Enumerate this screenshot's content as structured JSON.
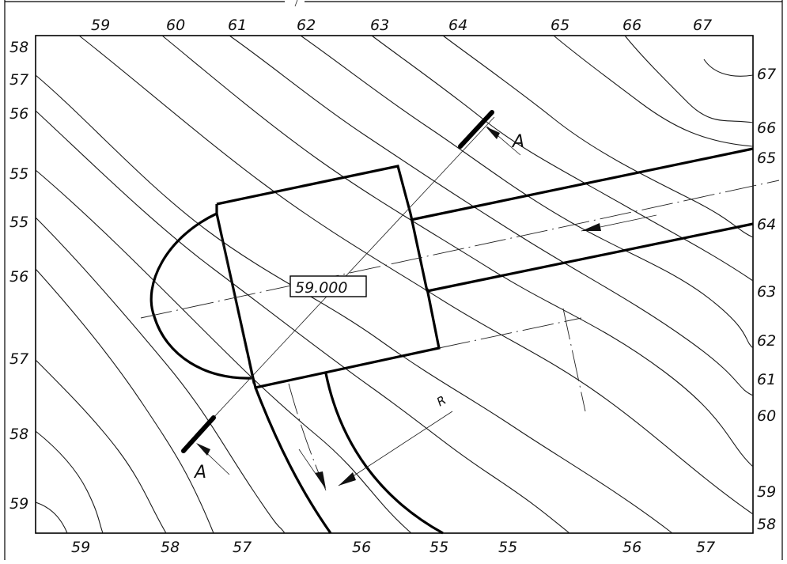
{
  "drawing": {
    "contour_labels_top": [
      "59",
      "60",
      "61",
      "62",
      "63",
      "64",
      "65",
      "66",
      "67"
    ],
    "contour_labels_bottom": [
      "59",
      "58",
      "57",
      "56",
      "55",
      "55",
      "56",
      "57"
    ],
    "contour_labels_left": [
      "58",
      "57",
      "56",
      "55",
      "55",
      "56",
      "57",
      "58",
      "59"
    ],
    "contour_labels_right": [
      "67",
      "66",
      "65",
      "64",
      "63",
      "62",
      "61",
      "60",
      "59",
      "58"
    ],
    "elevation_value": "59.000",
    "section_mark": "A",
    "radius_label": "R"
  }
}
